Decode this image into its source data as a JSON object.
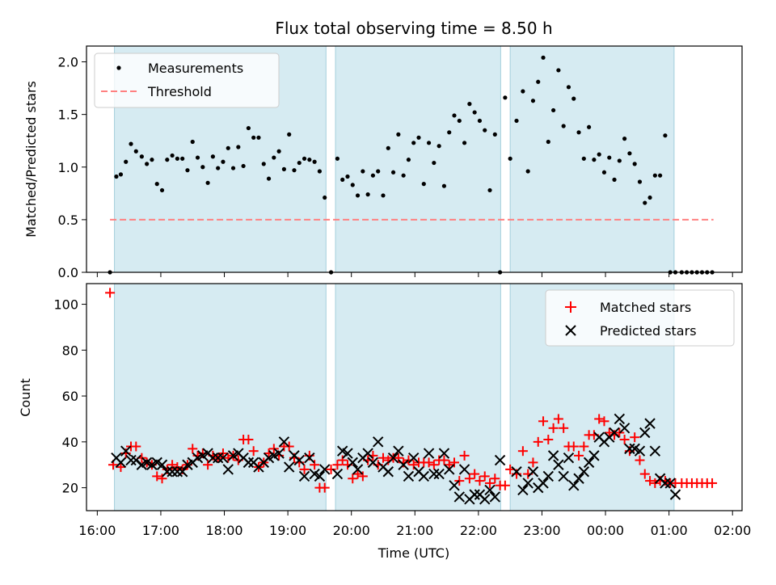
{
  "chart_data": [
    {
      "type": "scatter",
      "title": "Flux total observing time = 8.50 h",
      "xlabel": "",
      "ylabel": "Matched/Predicted stars",
      "xlim": [
        15.83,
        26.15
      ],
      "ylim": [
        0.0,
        2.15
      ],
      "yticks": [
        0.0,
        0.5,
        1.0,
        1.5,
        2.0
      ],
      "ytick_labels": [
        "0.0",
        "0.5",
        "1.0",
        "1.5",
        "2.0"
      ],
      "grid": false,
      "legend": "top-left",
      "observing_windows": [
        [
          16.27,
          19.6
        ],
        [
          19.75,
          22.35
        ],
        [
          22.5,
          25.08
        ]
      ],
      "threshold": {
        "name": "Threshold",
        "value": 0.5,
        "x": [
          16.2,
          25.7
        ],
        "color": "#ff8080"
      },
      "series": [
        {
          "name": "Measurements",
          "color": "#000000",
          "x": [
            16.2,
            16.3,
            16.37,
            16.45,
            16.53,
            16.61,
            16.7,
            16.78,
            16.86,
            16.94,
            17.02,
            17.1,
            17.18,
            17.26,
            17.34,
            17.42,
            17.5,
            17.58,
            17.66,
            17.74,
            17.82,
            17.9,
            17.98,
            18.06,
            18.14,
            18.22,
            18.3,
            18.38,
            18.46,
            18.54,
            18.62,
            18.7,
            18.78,
            18.86,
            18.94,
            19.02,
            19.1,
            19.18,
            19.26,
            19.34,
            19.42,
            19.5,
            19.58,
            19.68,
            19.78,
            19.86,
            19.94,
            20.02,
            20.1,
            20.18,
            20.26,
            20.34,
            20.42,
            20.5,
            20.58,
            20.66,
            20.74,
            20.82,
            20.9,
            20.98,
            21.06,
            21.14,
            21.22,
            21.3,
            21.38,
            21.46,
            21.54,
            21.62,
            21.7,
            21.78,
            21.86,
            21.94,
            22.02,
            22.1,
            22.18,
            22.26,
            22.34,
            22.42,
            22.5,
            22.6,
            22.7,
            22.78,
            22.86,
            22.94,
            23.02,
            23.1,
            23.18,
            23.26,
            23.34,
            23.42,
            23.5,
            23.58,
            23.66,
            23.74,
            23.82,
            23.9,
            23.98,
            24.06,
            24.14,
            24.22,
            24.3,
            24.38,
            24.46,
            24.54,
            24.62,
            24.7,
            24.78,
            24.86,
            24.94,
            25.02,
            25.1,
            25.2,
            25.28,
            25.36,
            25.44,
            25.52,
            25.6,
            25.68
          ],
          "y": [
            0.0,
            0.91,
            0.93,
            1.05,
            1.22,
            1.15,
            1.1,
            1.03,
            1.07,
            0.84,
            0.78,
            1.07,
            1.11,
            1.08,
            1.08,
            0.97,
            1.24,
            1.09,
            1.0,
            0.85,
            1.1,
            0.99,
            1.05,
            1.18,
            0.99,
            1.19,
            1.01,
            1.37,
            1.28,
            1.28,
            1.03,
            0.89,
            1.09,
            1.15,
            0.98,
            1.31,
            0.97,
            1.04,
            1.08,
            1.07,
            1.05,
            0.96,
            0.71,
            0.0,
            1.08,
            0.88,
            0.91,
            0.83,
            0.73,
            0.96,
            0.74,
            0.92,
            0.96,
            0.73,
            1.18,
            0.95,
            1.31,
            0.92,
            1.07,
            1.23,
            1.28,
            0.84,
            1.23,
            1.04,
            1.2,
            0.82,
            1.33,
            1.49,
            1.44,
            1.23,
            1.6,
            1.52,
            1.44,
            1.35,
            0.78,
            1.31,
            0.0,
            1.66,
            1.08,
            1.44,
            1.72,
            0.96,
            1.63,
            1.81,
            2.04,
            1.24,
            1.54,
            1.92,
            1.39,
            1.76,
            1.65,
            1.33,
            1.08,
            1.38,
            1.07,
            1.12,
            0.95,
            1.09,
            0.88,
            1.06,
            1.27,
            1.13,
            1.03,
            0.86,
            0.66,
            0.71,
            0.92,
            0.92,
            1.3,
            0.0,
            0.0,
            0.0,
            0.0,
            0.0,
            0.0,
            0.0,
            0.0,
            0.0
          ]
        }
      ]
    },
    {
      "type": "scatter",
      "title": "",
      "xlabel": "Time (UTC)",
      "ylabel": "Count",
      "xlim": [
        15.83,
        26.15
      ],
      "ylim": [
        10,
        109
      ],
      "yticks": [
        20,
        40,
        60,
        80,
        100
      ],
      "ytick_labels": [
        "20",
        "40",
        "60",
        "80",
        "100"
      ],
      "xticks": [
        16,
        17,
        18,
        19,
        20,
        21,
        22,
        23,
        24,
        25,
        26
      ],
      "xtick_labels": [
        "16:00",
        "17:00",
        "18:00",
        "19:00",
        "20:00",
        "21:00",
        "22:00",
        "23:00",
        "00:00",
        "01:00",
        "02:00"
      ],
      "grid": false,
      "legend": "top-right",
      "observing_windows": [
        [
          16.27,
          19.6
        ],
        [
          19.75,
          22.35
        ],
        [
          22.5,
          25.08
        ]
      ],
      "series": [
        {
          "name": "Matched stars",
          "marker": "plus",
          "color": "#ff0000",
          "x": [
            16.2,
            16.25,
            16.37,
            16.45,
            16.53,
            16.61,
            16.7,
            16.78,
            16.86,
            16.94,
            17.02,
            17.1,
            17.18,
            17.26,
            17.34,
            17.42,
            17.5,
            17.58,
            17.66,
            17.74,
            17.82,
            17.9,
            17.98,
            18.06,
            18.14,
            18.22,
            18.3,
            18.38,
            18.46,
            18.54,
            18.62,
            18.7,
            18.78,
            18.86,
            18.94,
            19.02,
            19.1,
            19.18,
            19.26,
            19.34,
            19.42,
            19.5,
            19.58,
            19.68,
            19.78,
            19.86,
            19.94,
            20.02,
            20.1,
            20.18,
            20.26,
            20.34,
            20.42,
            20.5,
            20.58,
            20.66,
            20.74,
            20.82,
            20.9,
            20.98,
            21.06,
            21.14,
            21.22,
            21.3,
            21.38,
            21.46,
            21.54,
            21.62,
            21.7,
            21.78,
            21.86,
            21.94,
            22.02,
            22.1,
            22.18,
            22.26,
            22.34,
            22.42,
            22.5,
            22.6,
            22.7,
            22.78,
            22.86,
            22.94,
            23.02,
            23.1,
            23.18,
            23.26,
            23.34,
            23.42,
            23.5,
            23.58,
            23.66,
            23.74,
            23.82,
            23.9,
            23.98,
            24.06,
            24.14,
            24.22,
            24.3,
            24.38,
            24.46,
            24.54,
            24.62,
            24.7,
            24.78,
            24.86,
            24.94,
            25.02,
            25.1,
            25.2,
            25.28,
            25.36,
            25.44,
            25.52,
            25.6,
            25.68
          ],
          "y": [
            105,
            30,
            29,
            35,
            38,
            38,
            33,
            31,
            30,
            25,
            24,
            28,
            30,
            29,
            28,
            30,
            37,
            34,
            35,
            30,
            34,
            33,
            35,
            33,
            34,
            32,
            41,
            41,
            36,
            29,
            31,
            35,
            37,
            34,
            38,
            38,
            33,
            31,
            28,
            34,
            30,
            20,
            20,
            28,
            30,
            32,
            30,
            24,
            26,
            25,
            32,
            34,
            30,
            33,
            32,
            33,
            33,
            31,
            32,
            30,
            31,
            31,
            31,
            30,
            32,
            32,
            30,
            31,
            23,
            34,
            24,
            26,
            23,
            25,
            22,
            24,
            21,
            21,
            28,
            26,
            36,
            26,
            31,
            40,
            49,
            41,
            46,
            50,
            46,
            38,
            38,
            34,
            38,
            43,
            43,
            50,
            49,
            44,
            43,
            44,
            41,
            36,
            42,
            32,
            26,
            23,
            22,
            23,
            23,
            22,
            22,
            22,
            22,
            22,
            22,
            22,
            22,
            22
          ]
        },
        {
          "name": "Predicted stars",
          "marker": "x",
          "color": "#000000",
          "x": [
            16.3,
            16.37,
            16.45,
            16.53,
            16.61,
            16.7,
            16.78,
            16.86,
            16.94,
            17.02,
            17.1,
            17.18,
            17.26,
            17.34,
            17.42,
            17.5,
            17.58,
            17.66,
            17.74,
            17.82,
            17.9,
            17.98,
            18.06,
            18.14,
            18.22,
            18.3,
            18.38,
            18.46,
            18.54,
            18.62,
            18.7,
            18.78,
            18.86,
            18.94,
            19.02,
            19.1,
            19.18,
            19.26,
            19.34,
            19.42,
            19.5,
            19.58,
            19.78,
            19.86,
            19.94,
            20.02,
            20.1,
            20.18,
            20.26,
            20.34,
            20.42,
            20.5,
            20.58,
            20.66,
            20.74,
            20.82,
            20.9,
            20.98,
            21.06,
            21.14,
            21.22,
            21.3,
            21.38,
            21.46,
            21.54,
            21.62,
            21.7,
            21.78,
            21.86,
            21.94,
            22.02,
            22.1,
            22.18,
            22.26,
            22.34,
            22.6,
            22.7,
            22.78,
            22.86,
            22.94,
            23.02,
            23.1,
            23.18,
            23.26,
            23.34,
            23.42,
            23.5,
            23.58,
            23.66,
            23.74,
            23.82,
            23.9,
            23.98,
            24.06,
            24.14,
            24.22,
            24.3,
            24.38,
            24.46,
            24.54,
            24.62,
            24.7,
            24.78,
            24.86,
            24.94,
            25.02,
            25.1
          ],
          "y": [
            33,
            31,
            36,
            32,
            32,
            30,
            31,
            30,
            31,
            30,
            27,
            27,
            27,
            27,
            30,
            31,
            33,
            34,
            35,
            33,
            33,
            33,
            28,
            34,
            35,
            33,
            31,
            31,
            29,
            31,
            33,
            34,
            35,
            40,
            29,
            34,
            32,
            25,
            33,
            26,
            25,
            28,
            26,
            36,
            35,
            31,
            28,
            33,
            35,
            31,
            40,
            29,
            27,
            33,
            36,
            30,
            25,
            33,
            27,
            25,
            35,
            26,
            26,
            35,
            28,
            21,
            16,
            28,
            15,
            17,
            17,
            15,
            19,
            16,
            32,
            27,
            19,
            22,
            27,
            20,
            22,
            25,
            34,
            30,
            25,
            33,
            21,
            24,
            27,
            31,
            34,
            42,
            40,
            42,
            44,
            50,
            46,
            37,
            37,
            36,
            44,
            48,
            36,
            24,
            22,
            22,
            17
          ]
        }
      ]
    }
  ]
}
